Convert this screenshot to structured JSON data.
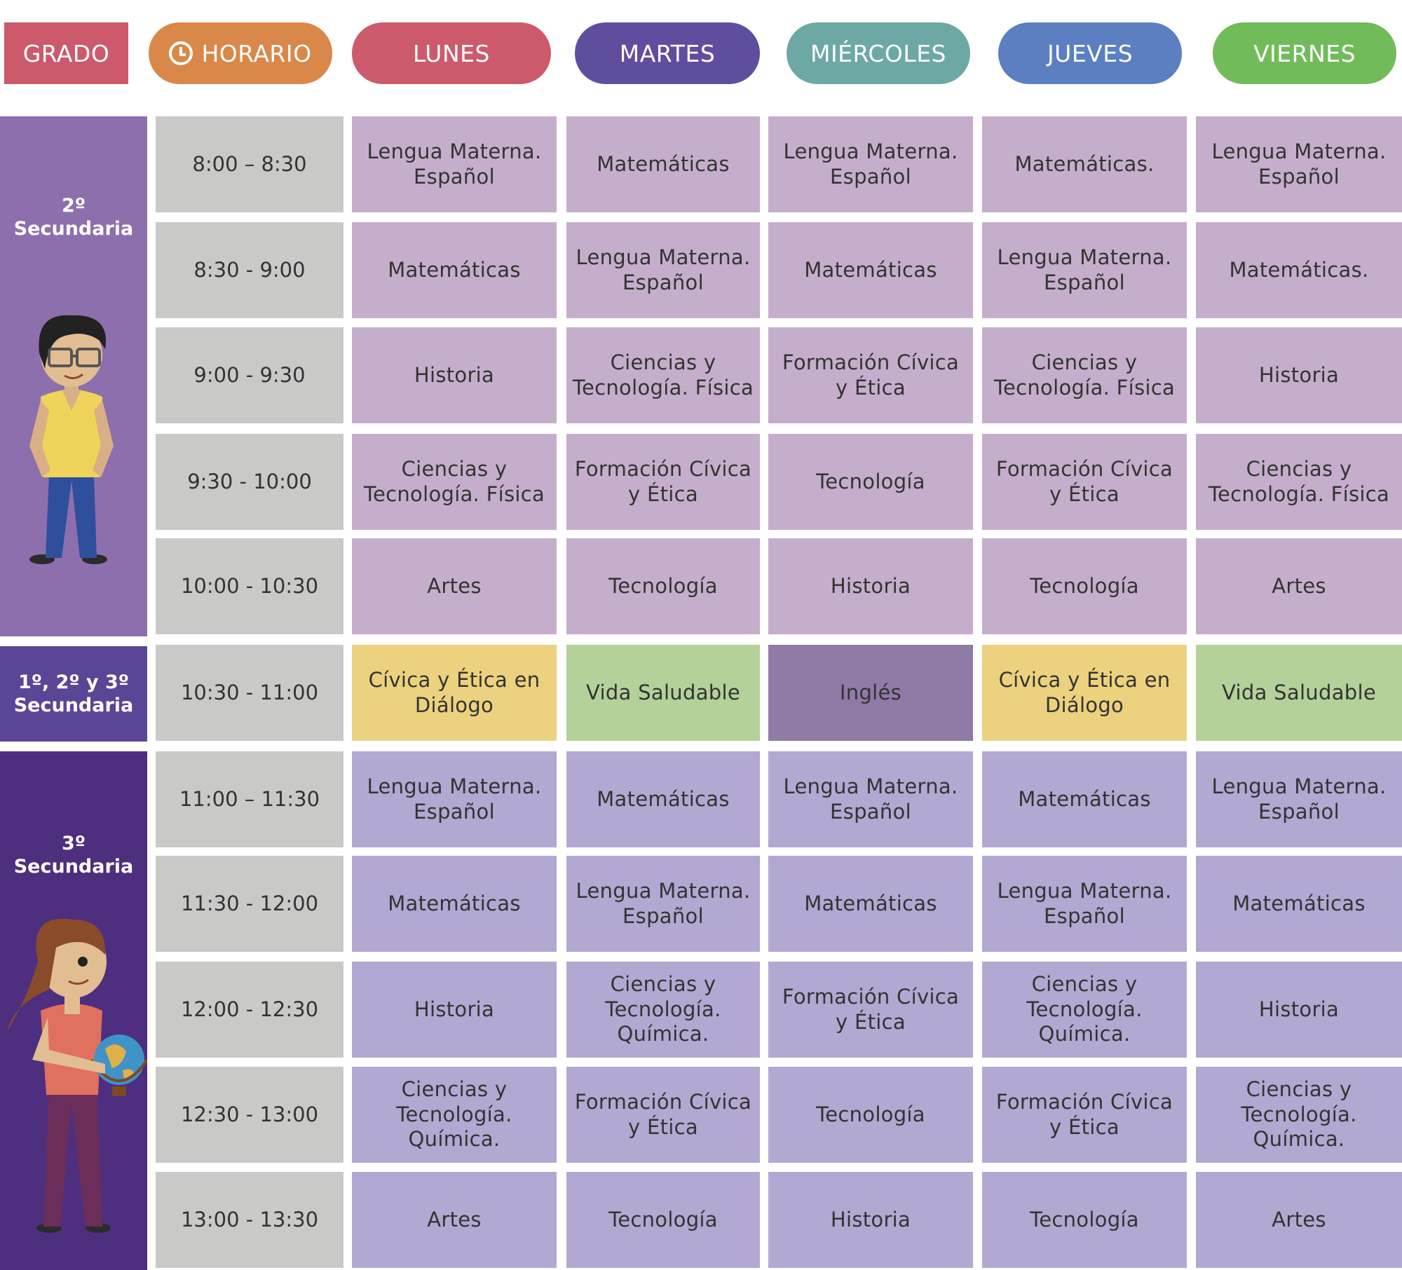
{
  "header": {
    "grado": "GRADO",
    "horario": "HORARIO",
    "days": [
      "LUNES",
      "MARTES",
      "MIÉRCOLES",
      "JUEVES",
      "VIERNES"
    ]
  },
  "grades": {
    "g2": {
      "line1": "2º",
      "line2": "Secundaria"
    },
    "g123": {
      "line1": "1º, 2º y 3º",
      "line2": "Secundaria"
    },
    "g3": {
      "line1": "3º",
      "line2": "Secundaria"
    }
  },
  "rows": [
    {
      "time": "8:00 – 8:30",
      "cells": [
        "Lengua Materna. Español",
        "Matemáticas",
        "Lengua Materna. Español",
        "Matemáticas.",
        "Lengua Materna. Español"
      ]
    },
    {
      "time": "8:30 - 9:00",
      "cells": [
        "Matemáticas",
        "Lengua Materna. Español",
        "Matemáticas",
        "Lengua Materna. Español",
        "Matemáticas."
      ]
    },
    {
      "time": "9:00 - 9:30",
      "cells": [
        "Historia",
        "Ciencias y Tecnología. Física",
        "Formación Cívica y Ética",
        "Ciencias y Tecnología. Física",
        "Historia"
      ]
    },
    {
      "time": "9:30 - 10:00",
      "cells": [
        "Ciencias y Tecnología. Física",
        "Formación Cívica y Ética",
        "Tecnología",
        "Formación Cívica y Ética",
        "Ciencias y Tecnología. Física"
      ]
    },
    {
      "time": "10:00 - 10:30",
      "cells": [
        "Artes",
        "Tecnología",
        "Historia",
        "Tecnología",
        "Artes"
      ]
    },
    {
      "time": "10:30 - 11:00",
      "cells": [
        "Cívica y Ética en Diálogo",
        "Vida Saludable",
        "Inglés",
        "Cívica y Ética en Diálogo",
        "Vida Saludable"
      ]
    },
    {
      "time": "11:00 – 11:30",
      "cells": [
        "Lengua Materna. Español",
        "Matemáticas",
        "Lengua Materna. Español",
        "Matemáticas",
        "Lengua Materna. Español"
      ]
    },
    {
      "time": "11:30 - 12:00",
      "cells": [
        "Matemáticas",
        "Lengua Materna. Español",
        "Matemáticas",
        "Lengua Materna. Español",
        "Matemáticas"
      ]
    },
    {
      "time": "12:00 - 12:30",
      "cells": [
        "Historia",
        "Ciencias y Tecnología. Química.",
        "Formación Cívica y Ética",
        "Ciencias y Tecnología. Química.",
        "Historia"
      ]
    },
    {
      "time": "12:30 - 13:00",
      "cells": [
        "Ciencias y Tecnología. Química.",
        "Formación Cívica y Ética",
        "Tecnología",
        "Formación Cívica y Ética",
        "Ciencias y Tecnología. Química."
      ]
    },
    {
      "time": "13:00 - 13:30",
      "cells": [
        "Artes",
        "Tecnología",
        "Historia",
        "Tecnología",
        "Artes"
      ]
    }
  ],
  "colors": {
    "grado": "#cc5a6c",
    "horario": "#d98849",
    "lunes": "#cc5a6c",
    "martes": "#5f4e9e",
    "miercoles": "#6da8a4",
    "jueves": "#5b7fc0",
    "viernes": "#72bb5b",
    "time_cell": "#c9c9c7",
    "subject_2nd": "#c5aecb",
    "subject_3rd": "#b3a8d1",
    "civica_dialogo": "#ecd27e",
    "vida_saludable": "#b4d19a",
    "ingles": "#8f7ba5",
    "grade_2nd": "#8d6fae",
    "grade_all": "#5a4596",
    "grade_3rd": "#4e2e7e"
  }
}
